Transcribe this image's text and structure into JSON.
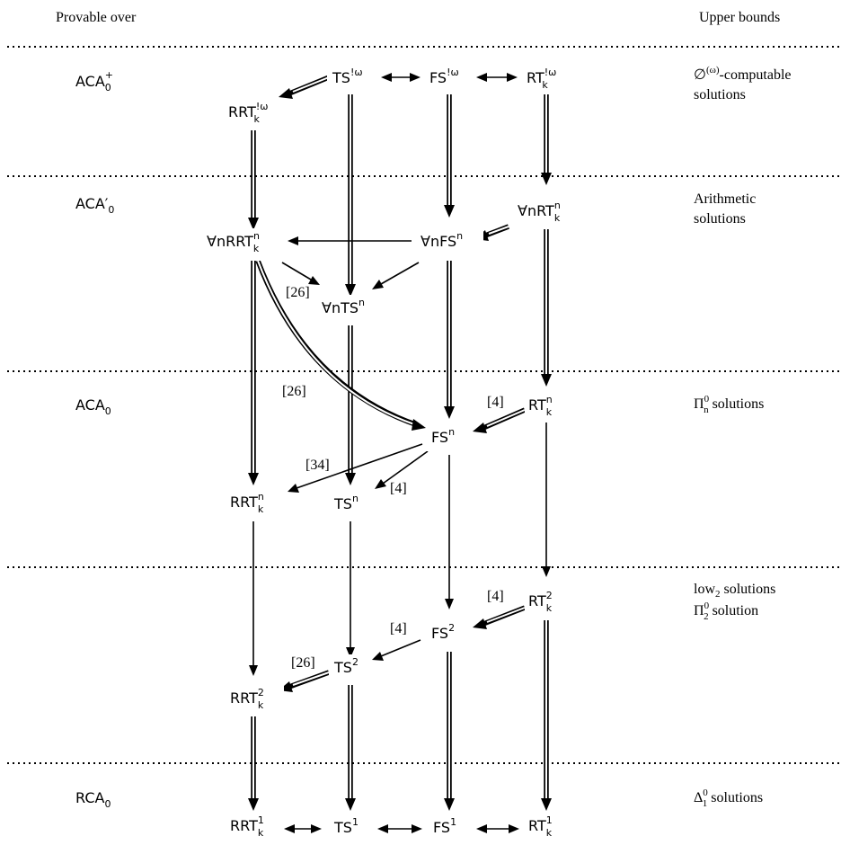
{
  "headers": {
    "left": "Provable over",
    "right": "Upper bounds"
  },
  "rows": [
    {
      "system": "ACA",
      "sub": "0",
      "sup": "+",
      "bound": [
        "∅(ω)-computable",
        "solutions"
      ]
    },
    {
      "system": "ACA′",
      "sub": "0",
      "sup": "",
      "bound": [
        "Arithmetic",
        "solutions"
      ]
    },
    {
      "system": "ACA",
      "sub": "0",
      "sup": "",
      "bound": [
        "Π0n solutions"
      ]
    },
    {
      "system": "",
      "sub": "",
      "sup": "",
      "bound": [
        "low₂ solutions",
        "Π02 solution"
      ]
    },
    {
      "system": "RCA",
      "sub": "0",
      "sup": "",
      "bound": [
        "Δ01 solutions"
      ]
    }
  ],
  "nodes": {
    "ts_omega": {
      "base": "TS",
      "sup": "!ω",
      "sub": ""
    },
    "fs_omega": {
      "base": "FS",
      "sup": "!ω",
      "sub": ""
    },
    "rt_omega": {
      "base": "RT",
      "sup": "!ω",
      "sub": "k"
    },
    "rrt_omega": {
      "base": "RRT",
      "sup": "!ω",
      "sub": "k"
    },
    "all_rt": {
      "pre": "∀n",
      "base": "RT",
      "sup": "n",
      "sub": "k"
    },
    "all_rrt": {
      "pre": "∀n",
      "base": "RRT",
      "sup": "n",
      "sub": "k"
    },
    "all_fs": {
      "pre": "∀n",
      "base": "FS",
      "sup": "n",
      "sub": ""
    },
    "all_ts": {
      "pre": "∀n",
      "base": "TS",
      "sup": "n",
      "sub": ""
    },
    "rt_n": {
      "base": "RT",
      "sup": "n",
      "sub": "k"
    },
    "fs_n": {
      "base": "FS",
      "sup": "n",
      "sub": ""
    },
    "rrt_n": {
      "base": "RRT",
      "sup": "n",
      "sub": "k"
    },
    "ts_n": {
      "base": "TS",
      "sup": "n",
      "sub": ""
    },
    "rt_2": {
      "base": "RT",
      "sup": "2",
      "sub": "k"
    },
    "fs_2": {
      "base": "FS",
      "sup": "2",
      "sub": ""
    },
    "ts_2": {
      "base": "TS",
      "sup": "2",
      "sub": ""
    },
    "rrt_2": {
      "base": "RRT",
      "sup": "2",
      "sub": "k"
    },
    "rrt_1": {
      "base": "RRT",
      "sup": "1",
      "sub": "k"
    },
    "ts_1": {
      "base": "TS",
      "sup": "1",
      "sub": ""
    },
    "fs_1": {
      "base": "FS",
      "sup": "1",
      "sub": ""
    },
    "rt_1": {
      "base": "RT",
      "sup": "1",
      "sub": "k"
    }
  },
  "citations": {
    "c26a": "[26]",
    "c26b": "[26]",
    "c4a": "[4]",
    "c34": "[34]",
    "c4b": "[4]",
    "c4c": "[4]",
    "c4d": "[4]",
    "c26c": "[26]"
  }
}
